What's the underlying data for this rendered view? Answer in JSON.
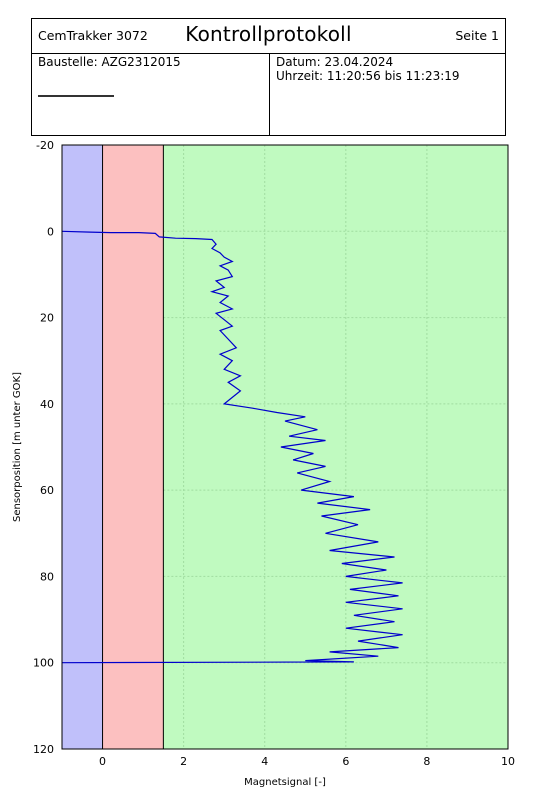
{
  "header": {
    "device": "CemTrakker 3072",
    "title": "Kontrollprotokoll",
    "page": "Seite 1",
    "site_label": "Baustelle: AZG2312015",
    "date_label": "Datum: 23.04.2024",
    "time_label": "Uhrzeit: 11:20:56 bis 11:23:19"
  },
  "colors": {
    "zone_blue": "#c0c0fa",
    "zone_red": "#fcc0c0",
    "zone_green": "#c0fac0",
    "line": "#0000cc",
    "grid": "#a0dca0"
  },
  "chart_data": {
    "type": "line",
    "xlabel": "Magnetsignal [-]",
    "ylabel": "Sensorposition [m unter GOK]",
    "xlim": [
      -1,
      10
    ],
    "ylim": [
      -20,
      120
    ],
    "y_inverted": true,
    "xticks": [
      0,
      2,
      4,
      6,
      8,
      10
    ],
    "yticks": [
      -20,
      0,
      20,
      40,
      60,
      80,
      100,
      120
    ],
    "grid": true,
    "zones": [
      {
        "from": -1,
        "to": 0,
        "color": "#c0c0fa"
      },
      {
        "from": 0,
        "to": 1.5,
        "color": "#fcc0c0"
      },
      {
        "from": 1.5,
        "to": 10,
        "color": "#c0fac0"
      }
    ],
    "series": [
      {
        "points": [
          [
            -1.0,
            0.0
          ],
          [
            -0.3,
            0.2
          ],
          [
            0.2,
            0.3
          ],
          [
            0.9,
            0.3
          ],
          [
            1.3,
            0.5
          ],
          [
            1.4,
            1.3
          ],
          [
            1.8,
            1.6
          ],
          [
            2.3,
            1.7
          ],
          [
            2.7,
            1.9
          ],
          [
            2.8,
            3.0
          ],
          [
            2.7,
            4.0
          ],
          [
            2.9,
            5.0
          ],
          [
            3.0,
            6.0
          ],
          [
            3.2,
            7.0
          ],
          [
            2.9,
            8.0
          ],
          [
            3.1,
            9.0
          ],
          [
            3.2,
            10.5
          ],
          [
            2.8,
            11.5
          ],
          [
            3.0,
            13.0
          ],
          [
            2.7,
            14.0
          ],
          [
            3.1,
            15.0
          ],
          [
            2.9,
            16.5
          ],
          [
            3.2,
            18.0
          ],
          [
            2.8,
            19.0
          ],
          [
            3.0,
            20.5
          ],
          [
            3.2,
            22.0
          ],
          [
            2.9,
            23.0
          ],
          [
            3.1,
            25.0
          ],
          [
            3.3,
            27.0
          ],
          [
            2.9,
            28.5
          ],
          [
            3.2,
            30.0
          ],
          [
            3.0,
            32.0
          ],
          [
            3.4,
            33.5
          ],
          [
            3.1,
            35.0
          ],
          [
            3.4,
            37.0
          ],
          [
            3.2,
            38.5
          ],
          [
            3.0,
            40.0
          ],
          [
            3.7,
            41.0
          ],
          [
            4.3,
            42.0
          ],
          [
            5.0,
            43.0
          ],
          [
            4.5,
            44.0
          ],
          [
            5.3,
            46.0
          ],
          [
            4.6,
            47.5
          ],
          [
            5.5,
            48.5
          ],
          [
            4.4,
            50.0
          ],
          [
            5.2,
            51.5
          ],
          [
            4.7,
            53.0
          ],
          [
            5.5,
            54.5
          ],
          [
            4.8,
            56.0
          ],
          [
            5.6,
            58.0
          ],
          [
            4.9,
            60.0
          ],
          [
            6.2,
            61.5
          ],
          [
            5.3,
            63.0
          ],
          [
            6.6,
            64.5
          ],
          [
            5.4,
            66.0
          ],
          [
            6.3,
            68.0
          ],
          [
            5.5,
            70.0
          ],
          [
            6.8,
            72.0
          ],
          [
            5.6,
            74.0
          ],
          [
            7.2,
            75.5
          ],
          [
            5.9,
            77.0
          ],
          [
            7.0,
            78.5
          ],
          [
            6.0,
            80.0
          ],
          [
            7.4,
            81.5
          ],
          [
            6.1,
            83.0
          ],
          [
            7.3,
            84.5
          ],
          [
            6.0,
            86.0
          ],
          [
            7.4,
            87.5
          ],
          [
            6.2,
            89.0
          ],
          [
            7.2,
            90.5
          ],
          [
            6.0,
            92.0
          ],
          [
            7.4,
            93.5
          ],
          [
            6.3,
            95.0
          ],
          [
            7.3,
            96.5
          ],
          [
            5.6,
            97.5
          ],
          [
            6.8,
            98.5
          ],
          [
            5.0,
            99.5
          ],
          [
            6.2,
            99.8
          ],
          [
            -1.0,
            100.0
          ]
        ]
      }
    ]
  }
}
